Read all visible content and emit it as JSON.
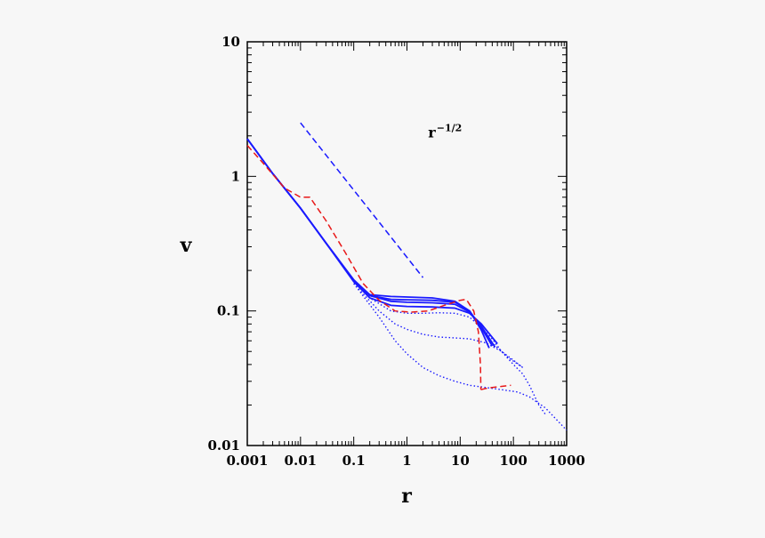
{
  "chart_data": {
    "type": "line",
    "title": "",
    "xlabel": "r",
    "ylabel": "v",
    "xscale": "log",
    "yscale": "log",
    "xlim": [
      0.001,
      1000
    ],
    "ylim": [
      0.01,
      10
    ],
    "x_tick_labels": [
      "0.001",
      "0.01",
      "0.1",
      "1",
      "10",
      "100",
      "1000"
    ],
    "y_tick_labels": [
      "0.01",
      "0.1",
      "1",
      "10"
    ],
    "grid": false,
    "annotation": {
      "base": "r",
      "exponent": "−1/2",
      "x": 2.5,
      "y": 1.95
    },
    "colors": {
      "blue": "#1a1aff",
      "red": "#e81818",
      "axis": "#000000"
    },
    "series": [
      {
        "style": "solid",
        "color": "#1a1aff",
        "x": [
          0.001,
          0.003,
          0.01,
          0.03,
          0.1,
          0.2,
          0.5,
          1,
          3,
          8,
          15,
          25,
          40
        ],
        "y": [
          1.9,
          1.05,
          0.58,
          0.32,
          0.17,
          0.13,
          0.122,
          0.121,
          0.12,
          0.116,
          0.1,
          0.075,
          0.055
        ]
      },
      {
        "style": "solid",
        "color": "#1a1aff",
        "x": [
          0.001,
          0.003,
          0.01,
          0.03,
          0.1,
          0.2,
          0.5,
          1,
          3,
          8,
          15,
          25,
          35
        ],
        "y": [
          1.9,
          1.05,
          0.58,
          0.32,
          0.17,
          0.132,
          0.128,
          0.127,
          0.125,
          0.118,
          0.1,
          0.072,
          0.053
        ]
      },
      {
        "style": "solid",
        "color": "#1a1aff",
        "x": [
          0.001,
          0.003,
          0.01,
          0.03,
          0.1,
          0.2,
          0.5,
          1,
          3,
          8,
          15,
          25,
          50
        ],
        "y": [
          1.9,
          1.05,
          0.58,
          0.32,
          0.165,
          0.125,
          0.11,
          0.108,
          0.107,
          0.105,
          0.096,
          0.08,
          0.057
        ]
      },
      {
        "style": "solid",
        "color": "#1a1aff",
        "x": [
          0.001,
          0.003,
          0.01,
          0.03,
          0.1,
          0.2,
          0.5,
          1,
          3,
          8,
          15,
          25,
          45
        ],
        "y": [
          1.9,
          1.05,
          0.58,
          0.32,
          0.168,
          0.13,
          0.118,
          0.116,
          0.115,
          0.112,
          0.098,
          0.077,
          0.054
        ]
      },
      {
        "style": "dotted",
        "color": "#1a1aff",
        "x": [
          0.1,
          0.2,
          0.5,
          1,
          2,
          4,
          8,
          15,
          25,
          40,
          80,
          150
        ],
        "y": [
          0.165,
          0.125,
          0.1,
          0.096,
          0.096,
          0.097,
          0.096,
          0.09,
          0.075,
          0.058,
          0.045,
          0.038
        ]
      },
      {
        "style": "dotted",
        "color": "#1a1aff",
        "x": [
          0.1,
          0.3,
          0.6,
          1,
          2,
          4,
          8,
          15,
          30,
          60,
          100,
          150
        ],
        "y": [
          0.16,
          0.1,
          0.08,
          0.073,
          0.067,
          0.064,
          0.063,
          0.062,
          0.058,
          0.05,
          0.043,
          0.038
        ]
      },
      {
        "style": "dotted",
        "color": "#1a1aff",
        "x": [
          0.1,
          0.3,
          0.6,
          1,
          2,
          4,
          8,
          15,
          30,
          60,
          120,
          200,
          400,
          1000
        ],
        "y": [
          0.16,
          0.09,
          0.06,
          0.048,
          0.038,
          0.033,
          0.03,
          0.028,
          0.027,
          0.026,
          0.025,
          0.023,
          0.019,
          0.013
        ]
      },
      {
        "style": "dotted",
        "color": "#1a1aff",
        "x": [
          25,
          40,
          60,
          100,
          150,
          200,
          300,
          400
        ],
        "y": [
          0.075,
          0.062,
          0.05,
          0.04,
          0.034,
          0.028,
          0.02,
          0.017
        ]
      },
      {
        "style": "dashed",
        "color": "#e81818",
        "x": [
          0.001,
          0.002,
          0.005,
          0.01,
          0.015,
          0.03,
          0.07,
          0.15,
          0.3,
          0.6,
          1.2,
          2.5,
          5,
          10,
          13,
          18,
          22,
          24,
          24.5
        ],
        "y": [
          1.7,
          1.25,
          0.82,
          0.7,
          0.7,
          0.47,
          0.27,
          0.16,
          0.12,
          0.1,
          0.098,
          0.1,
          0.11,
          0.12,
          0.122,
          0.1,
          0.07,
          0.04,
          0.026
        ]
      },
      {
        "style": "dashed",
        "color": "#e81818",
        "x": [
          24.5,
          30,
          40,
          60,
          90
        ],
        "y": [
          0.026,
          0.0265,
          0.027,
          0.0275,
          0.028
        ]
      },
      {
        "style": "dashed",
        "color": "#1a1aff",
        "x": [
          0.01,
          2
        ],
        "y": [
          2.5,
          0.177
        ]
      }
    ]
  }
}
